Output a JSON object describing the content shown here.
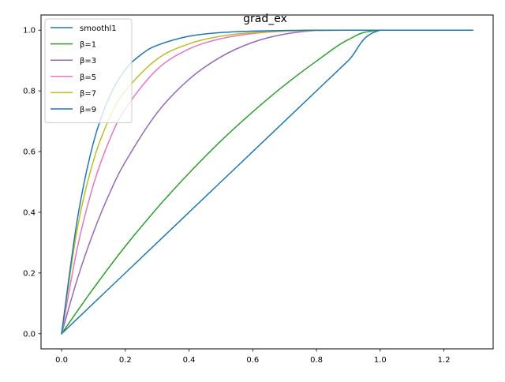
{
  "chart_data": {
    "type": "line",
    "title": "grad_ex",
    "xlabel": "",
    "ylabel": "",
    "xlim": [
      -0.0645,
      1.3545
    ],
    "ylim": [
      -0.05,
      1.05
    ],
    "xticks": [
      0.0,
      0.2,
      0.4,
      0.6,
      0.8,
      1.0,
      1.2
    ],
    "xtick_labels": [
      "0.0",
      "0.2",
      "0.4",
      "0.6",
      "0.8",
      "1.0",
      "1.2"
    ],
    "yticks": [
      0.0,
      0.2,
      0.4,
      0.6,
      0.8,
      1.0
    ],
    "ytick_labels": [
      "0.0",
      "0.2",
      "0.4",
      "0.6",
      "0.8",
      "1.0"
    ],
    "grid": false,
    "legend": {
      "position": "upper-left"
    },
    "x_domain": [
      0.0,
      1.29
    ],
    "series": [
      {
        "name": "smoothl1",
        "color": "#1f77b4",
        "x": [
          0.0,
          0.1,
          0.2,
          0.3,
          0.4,
          0.5,
          0.6,
          0.7,
          0.8,
          0.9,
          1.0,
          1.29
        ],
        "values": [
          0.0,
          0.1,
          0.2,
          0.3,
          0.4,
          0.5,
          0.6,
          0.7,
          0.8,
          0.9,
          1.0,
          1.0
        ]
      },
      {
        "name": "β=1",
        "color": "#2ca02c",
        "x": [
          0.0,
          0.1,
          0.2,
          0.3,
          0.4,
          0.5,
          0.6,
          0.7,
          0.8,
          0.9,
          1.0,
          1.29
        ],
        "values": [
          0.0,
          0.149,
          0.288,
          0.414,
          0.529,
          0.635,
          0.731,
          0.819,
          0.898,
          0.969,
          1.0,
          1.0
        ]
      },
      {
        "name": "β=3",
        "color": "#9467bd",
        "x": [
          0.0,
          0.05,
          0.1,
          0.15,
          0.2,
          0.3,
          0.4,
          0.5,
          0.6,
          0.7,
          0.8,
          0.9,
          1.0,
          1.29
        ],
        "values": [
          0.0,
          0.182,
          0.334,
          0.461,
          0.566,
          0.728,
          0.838,
          0.912,
          0.96,
          0.987,
          0.999,
          1.0,
          1.0,
          1.0
        ]
      },
      {
        "name": "β=5",
        "color": "#e377c2",
        "x": [
          0.0,
          0.05,
          0.1,
          0.15,
          0.2,
          0.3,
          0.4,
          0.5,
          0.6,
          0.7,
          0.8,
          0.9,
          1.0,
          1.29
        ],
        "values": [
          0.0,
          0.285,
          0.491,
          0.637,
          0.741,
          0.871,
          0.938,
          0.972,
          0.989,
          0.997,
          1.0,
          1.0,
          1.0,
          1.0
        ]
      },
      {
        "name": "β=7",
        "color": "#bcbd22",
        "x": [
          0.0,
          0.05,
          0.1,
          0.15,
          0.2,
          0.3,
          0.4,
          0.5,
          0.6,
          0.7,
          0.8,
          0.9,
          1.0,
          1.29
        ],
        "values": [
          0.0,
          0.35,
          0.57,
          0.71,
          0.8,
          0.905,
          0.955,
          0.98,
          0.992,
          0.997,
          0.999,
          1.0,
          1.0,
          1.0
        ]
      },
      {
        "name": "β=9",
        "color": "#1f77b4",
        "x": [
          0.0,
          0.05,
          0.1,
          0.15,
          0.2,
          0.25,
          0.3,
          0.4,
          0.5,
          0.6,
          0.7,
          0.8,
          1.0,
          1.29
        ],
        "values": [
          0.0,
          0.38,
          0.63,
          0.78,
          0.87,
          0.92,
          0.95,
          0.98,
          0.992,
          0.997,
          0.999,
          1.0,
          1.0,
          1.0
        ]
      }
    ]
  }
}
